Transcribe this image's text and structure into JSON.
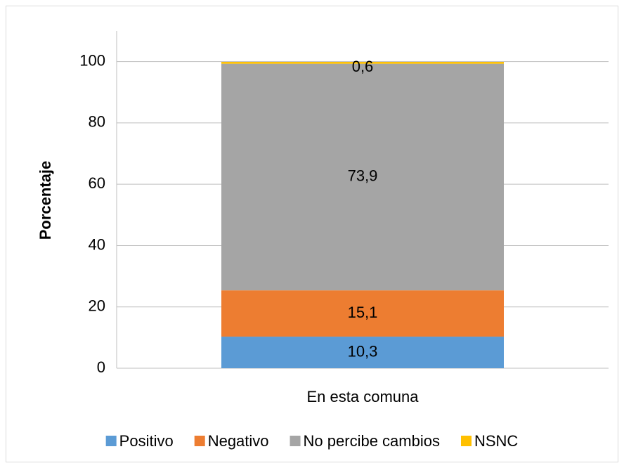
{
  "chart_data": {
    "type": "stacked_bar",
    "y_label": "Porcentaje",
    "categories": [
      "En esta comuna"
    ],
    "series": [
      {
        "name": "Positivo",
        "color": "#5b9bd5",
        "values": [
          10.3
        ],
        "value_labels": [
          "10,3"
        ]
      },
      {
        "name": "Negativo",
        "color": "#ed7d31",
        "values": [
          15.1
        ],
        "value_labels": [
          "15,1"
        ]
      },
      {
        "name": "No percibe cambios",
        "color": "#a5a5a5",
        "values": [
          73.9
        ],
        "value_labels": [
          "73,9"
        ]
      },
      {
        "name": "NSNC",
        "color": "#ffc000",
        "values": [
          0.6
        ],
        "value_labels": [
          "0,6"
        ]
      }
    ],
    "ylim": [
      0,
      110
    ],
    "yticks": [
      0,
      20,
      40,
      60,
      80,
      100
    ],
    "grid": true,
    "legend": "bottom"
  }
}
